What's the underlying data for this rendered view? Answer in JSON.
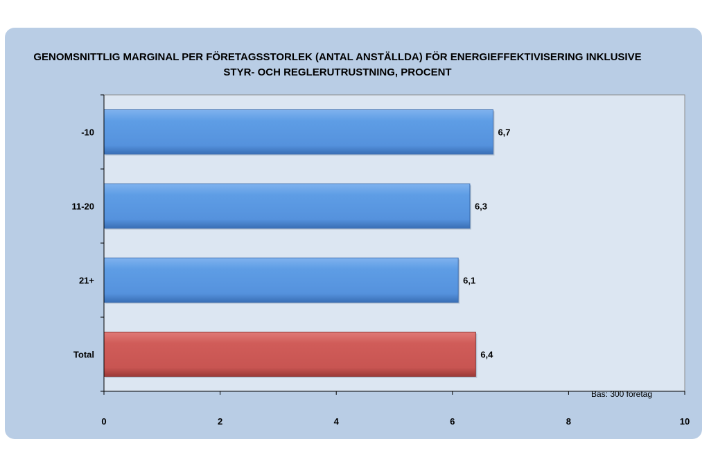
{
  "chart_data": {
    "type": "bar",
    "orientation": "horizontal",
    "title_line1": "GENOMSNITTLIG MARGINAL PER FÖRETAGSSTORLEK (ANTAL ANSTÄLLDA) FÖR ENERGIEFFEKTIVISERING INKLUSIVE",
    "title_line2": "STYR- OCH REGLERUTRUSTNING, PROCENT",
    "categories": [
      "-10",
      "11-20",
      "21+",
      "Total"
    ],
    "values": [
      6.7,
      6.3,
      6.1,
      6.4
    ],
    "value_labels": [
      "6,7",
      "6,3",
      "6,1",
      "6,4"
    ],
    "bar_colors": [
      "#5b9be3",
      "#5b9be3",
      "#5b9be3",
      "#cd5a57"
    ],
    "xlim": [
      0,
      10
    ],
    "xticks": [
      0,
      2,
      4,
      6,
      8,
      10
    ],
    "xlabel": "",
    "ylabel": "",
    "grid": false,
    "note": "Bas: 300  företag"
  }
}
